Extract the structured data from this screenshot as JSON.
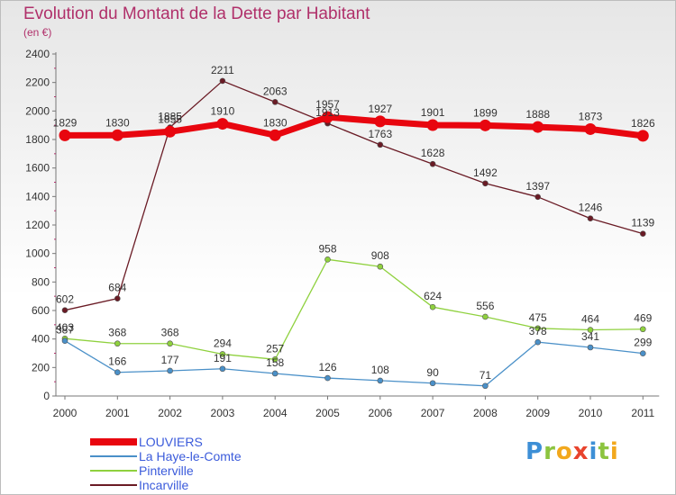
{
  "title": "Evolution du Montant de la Dette par Habitant",
  "subtitle": "(en €)",
  "logo_text": "Proxiti",
  "chart_data": {
    "type": "line",
    "title": "Evolution du Montant de la Dette par Habitant",
    "subtitle": "(en €)",
    "x": [
      "2000",
      "2001",
      "2002",
      "2003",
      "2004",
      "2005",
      "2006",
      "2007",
      "2008",
      "2009",
      "2010",
      "2011"
    ],
    "ylim": [
      0,
      2400
    ],
    "yticks": [
      0,
      200,
      400,
      600,
      800,
      1000,
      1200,
      1400,
      1600,
      1800,
      2000,
      2200,
      2400
    ],
    "grid": false,
    "legend_position": "bottom-left",
    "series": [
      {
        "name": "LOUVIERS",
        "color": "#e8060f",
        "values": [
          1829,
          1830,
          1855,
          1910,
          1830,
          1957,
          1927,
          1901,
          1899,
          1888,
          1873,
          1826
        ]
      },
      {
        "name": "La Haye-le-Comte",
        "color": "#4a90c8",
        "values": [
          387,
          166,
          177,
          191,
          158,
          126,
          108,
          90,
          71,
          378,
          341,
          299
        ]
      },
      {
        "name": "Pinterville",
        "color": "#8fd13e",
        "values": [
          403,
          368,
          368,
          294,
          257,
          958,
          908,
          624,
          556,
          475,
          464,
          469
        ]
      },
      {
        "name": "Incarville",
        "color": "#6a1b25",
        "values": [
          602,
          684,
          1885,
          2211,
          2063,
          1913,
          1763,
          1628,
          1492,
          1397,
          1246,
          1139
        ]
      }
    ]
  }
}
